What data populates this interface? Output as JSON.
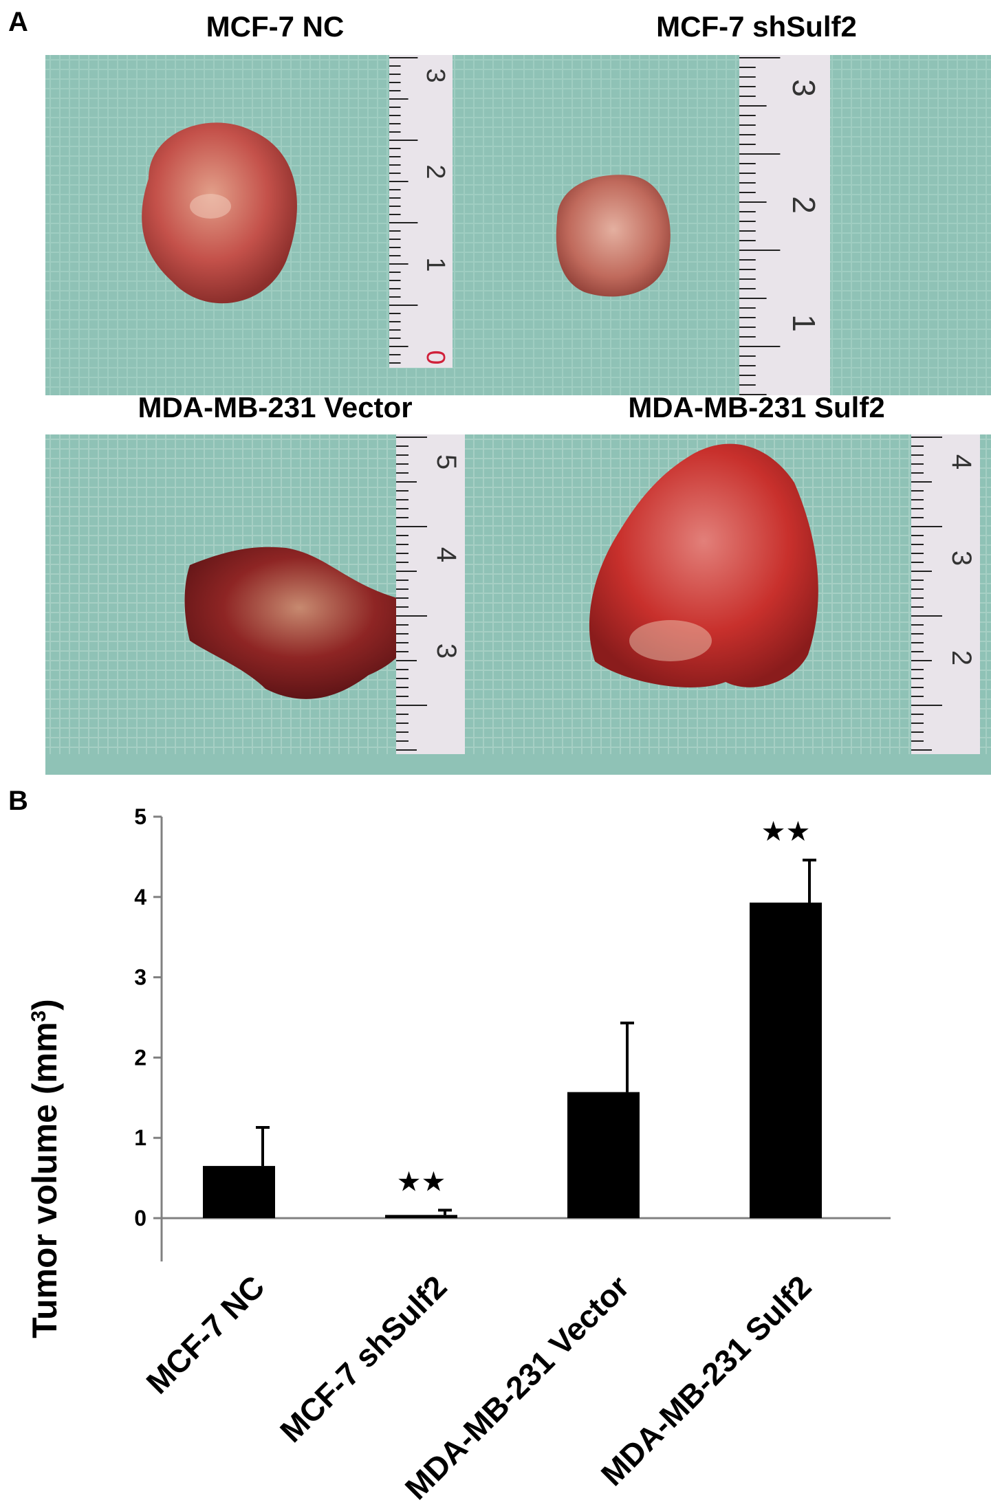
{
  "figure": {
    "panel_a_letter": "A",
    "panel_b_letter": "B",
    "photos": [
      {
        "title": "MCF-7 NC",
        "ruler_labels": [
          "3",
          "2",
          "1",
          "0"
        ],
        "tumor_color": "#b8403a"
      },
      {
        "title": "MCF-7 shSulf2",
        "ruler_labels": [
          "3",
          "2",
          "1"
        ],
        "tumor_color": "#b05446"
      },
      {
        "title": "MDA-MB-231 Vector",
        "ruler_labels": [
          "5",
          "4",
          "3"
        ],
        "tumor_color": "#8e1f22"
      },
      {
        "title": "MDA-MB-231 Sulf2",
        "ruler_labels": [
          "4",
          "3",
          "2"
        ],
        "tumor_color": "#c8302c"
      }
    ],
    "colors": {
      "background_drape": "#8fc2b6",
      "ruler": "#e9e4ea",
      "bar": "#000000",
      "axis": "#808080"
    }
  },
  "chart_data": {
    "type": "bar",
    "categories": [
      "MCF-7 NC",
      "MCF-7 shSulf2",
      "MDA-MB-231 Vector",
      "MDA-MB-231 Sulf2"
    ],
    "series": [
      {
        "values": [
          0.65,
          0.04,
          1.57,
          3.93
        ],
        "error": [
          0.48,
          0.06,
          0.86,
          0.53
        ],
        "significance": [
          "",
          "★★",
          "",
          "★★"
        ]
      }
    ],
    "ylabel": "Tumor volume (mm",
    "ylabel_sup": "3",
    "ylabel_close": ")",
    "ylim": [
      0,
      5
    ],
    "yticks": [
      "0",
      "1",
      "2",
      "3",
      "4",
      "5"
    ],
    "grid": false,
    "legend": "none"
  }
}
